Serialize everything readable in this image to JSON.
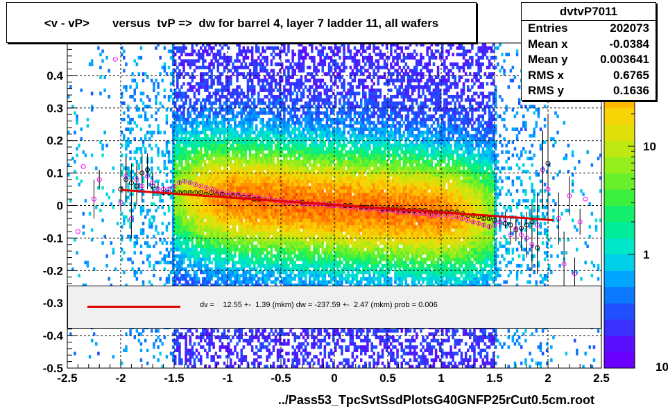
{
  "title": "<v - vP>       versus  tvP =>  dw for barrel 4, layer 7 ladder 11, all wafers",
  "stats": {
    "name": "dvtvP7011",
    "rows": [
      {
        "label": "Entries",
        "value": "202073"
      },
      {
        "label": "Mean x",
        "value": "-0.0384"
      },
      {
        "label": "Mean y",
        "value": "0.003641"
      },
      {
        "label": "RMS x",
        "value": "0.6765"
      },
      {
        "label": "RMS y",
        "value": "0.1636"
      }
    ]
  },
  "fit": {
    "text": "dv =    12.55 +-  1.39 (mkm) dw = -237.59 +-  2.47 (mkm) prob = 0.006",
    "color": "#e00000"
  },
  "xtitle": "../Pass53_TpcSvtSsdPlotsG40GNFP25rCut0.5cm.root",
  "chart_data": {
    "type": "heatmap",
    "xlim": [
      -2.5,
      2.5
    ],
    "ylim": [
      -0.5,
      0.5
    ],
    "x_ticks": [
      "-2.5",
      "-2",
      "-1.5",
      "-1",
      "-0.5",
      "0",
      "0.5",
      "1",
      "1.5",
      "2",
      "2.5"
    ],
    "y_ticks": [
      "-0.5",
      "-0.4",
      "-0.3",
      "-0.2",
      "-0.1",
      "0",
      "0.1",
      "0.2",
      "0.3",
      "0.4"
    ],
    "z_scale": "log",
    "z_ticks": [
      "1",
      "10"
    ],
    "z_tick_partial": "10",
    "grid": true,
    "fit_line": {
      "x": [
        -2.0,
        2.05
      ],
      "y": [
        0.048,
        -0.045
      ]
    },
    "profile_black": {
      "x": [
        -2.0,
        -1.95,
        -1.9,
        -1.85,
        -1.8,
        -1.75,
        -1.7,
        -1.65,
        -1.6,
        -1.55,
        -1.5,
        -1.45,
        -1.4,
        -1.35,
        -1.3,
        -1.25,
        -1.2,
        -1.15,
        -1.1,
        -1.05,
        -1.0,
        -0.95,
        -0.9,
        -0.85,
        -0.8,
        -0.75,
        -0.7,
        -0.65,
        -0.6,
        -0.55,
        -0.5,
        -0.45,
        -0.4,
        -0.35,
        -0.3,
        -0.25,
        -0.2,
        -0.15,
        -0.1,
        -0.05,
        0.0,
        0.05,
        0.1,
        0.15,
        0.2,
        0.25,
        0.3,
        0.35,
        0.4,
        0.45,
        0.5,
        0.55,
        0.6,
        0.65,
        0.7,
        0.75,
        0.8,
        0.85,
        0.9,
        0.95,
        1.0,
        1.05,
        1.1,
        1.15,
        1.2,
        1.25,
        1.3,
        1.35,
        1.4,
        1.45,
        1.5,
        1.55,
        1.6,
        1.65,
        1.7,
        1.75,
        1.8,
        1.85,
        1.9,
        1.95,
        2.0
      ],
      "y": [
        0.05,
        0.08,
        0.07,
        0.06,
        0.1,
        0.11,
        0.06,
        0.05,
        0.04,
        0.04,
        0.04,
        0.04,
        0.04,
        0.04,
        0.04,
        0.04,
        0.035,
        0.04,
        0.035,
        0.035,
        0.03,
        0.03,
        0.03,
        0.025,
        0.025,
        0.02,
        0.02,
        0.02,
        0.02,
        0.015,
        0.015,
        0.01,
        0.01,
        0.01,
        0.01,
        0.005,
        0.005,
        0.005,
        0.005,
        0.005,
        0.0,
        0.0,
        0.0,
        0.0,
        -0.005,
        -0.005,
        -0.005,
        -0.005,
        -0.01,
        -0.01,
        -0.01,
        -0.01,
        -0.01,
        -0.015,
        -0.015,
        -0.015,
        -0.015,
        -0.015,
        -0.02,
        -0.02,
        -0.02,
        -0.02,
        -0.02,
        -0.02,
        -0.025,
        -0.03,
        -0.03,
        -0.035,
        -0.04,
        -0.04,
        -0.045,
        -0.05,
        -0.055,
        -0.06,
        -0.075,
        -0.07,
        -0.06,
        -0.05,
        -0.13,
        0.11,
        0.13
      ],
      "err": [
        0.07,
        0.07,
        0.06,
        0.06,
        0.06,
        0.05,
        0.04,
        0.02,
        0.01,
        0.008,
        0.005,
        0.004,
        0.004,
        0.003,
        0.003,
        0.003,
        0.003,
        0.002,
        0.002,
        0.002,
        0.002,
        0.002,
        0.002,
        0.002,
        0.002,
        0.002,
        0.002,
        0.002,
        0.002,
        0.002,
        0.002,
        0.002,
        0.002,
        0.002,
        0.002,
        0.002,
        0.002,
        0.002,
        0.002,
        0.002,
        0.002,
        0.002,
        0.002,
        0.002,
        0.002,
        0.002,
        0.002,
        0.002,
        0.002,
        0.002,
        0.002,
        0.002,
        0.002,
        0.002,
        0.002,
        0.002,
        0.002,
        0.002,
        0.002,
        0.002,
        0.002,
        0.002,
        0.002,
        0.003,
        0.003,
        0.003,
        0.004,
        0.005,
        0.006,
        0.008,
        0.01,
        0.012,
        0.015,
        0.02,
        0.03,
        0.04,
        0.04,
        0.05,
        0.08,
        0.12,
        0.15
      ]
    },
    "profile_magenta": {
      "x": [
        -2.4,
        -2.35,
        -2.25,
        -2.2,
        -2.05,
        -2.0,
        -1.95,
        -1.9,
        -1.85,
        -1.8,
        -1.75,
        -1.7,
        -1.65,
        -1.6,
        -1.55,
        -1.5,
        -1.45,
        -1.4,
        -1.35,
        -1.3,
        -1.25,
        -1.2,
        -1.15,
        -1.1,
        -1.05,
        -1.0,
        -0.95,
        -0.9,
        -0.85,
        -0.8,
        -0.75,
        -0.7,
        -0.65,
        -0.6,
        -0.55,
        -0.5,
        -0.45,
        -0.4,
        -0.35,
        -0.3,
        -0.25,
        -0.2,
        -0.15,
        -0.1,
        -0.05,
        0.0,
        0.05,
        0.1,
        0.15,
        0.2,
        0.25,
        0.3,
        0.35,
        0.4,
        0.45,
        0.5,
        0.55,
        0.6,
        0.65,
        0.7,
        0.75,
        0.8,
        0.85,
        0.9,
        0.95,
        1.0,
        1.05,
        1.1,
        1.15,
        1.2,
        1.25,
        1.3,
        1.35,
        1.4,
        1.45,
        1.5,
        1.55,
        1.6,
        1.65,
        1.7,
        1.75,
        1.8,
        1.85,
        1.9,
        1.95,
        2.0,
        2.1,
        2.15,
        2.2,
        2.25,
        2.3,
        2.35
      ],
      "y": [
        -0.08,
        0.12,
        0.02,
        0.08,
        0.45,
        0.01,
        0.09,
        -0.04,
        0.08,
        0.06,
        0.09,
        0.07,
        0.05,
        0.05,
        0.05,
        0.06,
        0.07,
        0.075,
        0.07,
        0.065,
        0.06,
        0.055,
        0.05,
        0.045,
        0.04,
        0.04,
        0.035,
        0.035,
        0.03,
        0.03,
        0.025,
        0.025,
        0.02,
        0.02,
        0.015,
        0.015,
        0.01,
        0.01,
        0.01,
        0.005,
        0.005,
        0.005,
        0.005,
        0.005,
        0.0,
        0.0,
        0.0,
        -0.005,
        -0.005,
        -0.005,
        -0.01,
        -0.01,
        -0.01,
        -0.01,
        -0.015,
        -0.015,
        -0.015,
        -0.02,
        -0.02,
        -0.02,
        -0.025,
        -0.025,
        -0.025,
        -0.03,
        -0.03,
        -0.03,
        -0.03,
        -0.035,
        -0.035,
        -0.04,
        -0.045,
        -0.05,
        -0.055,
        -0.06,
        -0.065,
        -0.06,
        -0.05,
        -0.04,
        -0.09,
        -0.07,
        -0.09,
        -0.1,
        -0.12,
        -0.06,
        0.11,
        0.05,
        -0.04,
        -0.18,
        0.03,
        -0.21,
        -0.05,
        0.02
      ],
      "err": [
        0.0,
        0.0,
        0.06,
        0.03,
        0.0,
        0.0,
        0.06,
        0.06,
        0.05,
        0.05,
        0.04,
        0.03,
        0.02,
        0.01,
        0.008,
        0.006,
        0.005,
        0.004,
        0.003,
        0.003,
        0.003,
        0.002,
        0.002,
        0.002,
        0.002,
        0.002,
        0.002,
        0.002,
        0.002,
        0.002,
        0.002,
        0.002,
        0.002,
        0.002,
        0.002,
        0.002,
        0.002,
        0.002,
        0.002,
        0.002,
        0.002,
        0.002,
        0.002,
        0.002,
        0.002,
        0.002,
        0.002,
        0.002,
        0.002,
        0.002,
        0.002,
        0.002,
        0.002,
        0.002,
        0.002,
        0.002,
        0.002,
        0.002,
        0.002,
        0.002,
        0.002,
        0.002,
        0.002,
        0.002,
        0.002,
        0.002,
        0.002,
        0.002,
        0.003,
        0.003,
        0.003,
        0.004,
        0.005,
        0.006,
        0.008,
        0.01,
        0.015,
        0.02,
        0.03,
        0.04,
        0.05,
        0.06,
        0.08,
        0.1,
        0.12,
        0.1,
        0.08,
        0.1,
        0.06,
        0.05,
        0.04,
        0.0
      ]
    }
  }
}
